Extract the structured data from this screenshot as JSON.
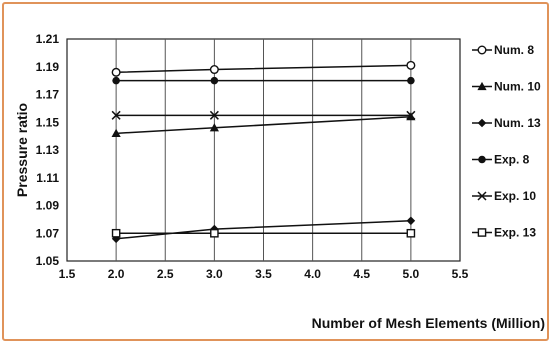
{
  "chart_data": {
    "type": "line",
    "ylabel": "Pressure ratio",
    "xlabel": "Number of Mesh Elements (Million)",
    "xlim": [
      1.5,
      5.5
    ],
    "ylim": [
      1.05,
      1.21
    ],
    "x_ticks": [
      "1.5",
      "2.0",
      "2.5",
      "3.0",
      "3.5",
      "4.0",
      "4.5",
      "5.0",
      "5.5"
    ],
    "y_ticks": [
      "1.05",
      "1.07",
      "1.09",
      "1.11",
      "1.13",
      "1.15",
      "1.17",
      "1.19",
      "1.21"
    ],
    "x": [
      2.0,
      3.0,
      5.0
    ],
    "grid": "vertical",
    "legend_position": "right",
    "series": [
      {
        "name": "Num. 8",
        "marker": "circle-open",
        "values": [
          1.186,
          1.188,
          1.191
        ]
      },
      {
        "name": "Num. 10",
        "marker": "triangle",
        "values": [
          1.142,
          1.146,
          1.154
        ]
      },
      {
        "name": "Num. 13",
        "marker": "diamond",
        "values": [
          1.066,
          1.073,
          1.079
        ]
      },
      {
        "name": "Exp. 8",
        "marker": "circle-filled",
        "values": [
          1.18,
          1.18,
          1.18
        ]
      },
      {
        "name": "Exp. 10",
        "marker": "cross",
        "values": [
          1.155,
          1.155,
          1.155
        ]
      },
      {
        "name": "Exp. 13",
        "marker": "square-open",
        "values": [
          1.07,
          1.07,
          1.07
        ]
      }
    ]
  }
}
